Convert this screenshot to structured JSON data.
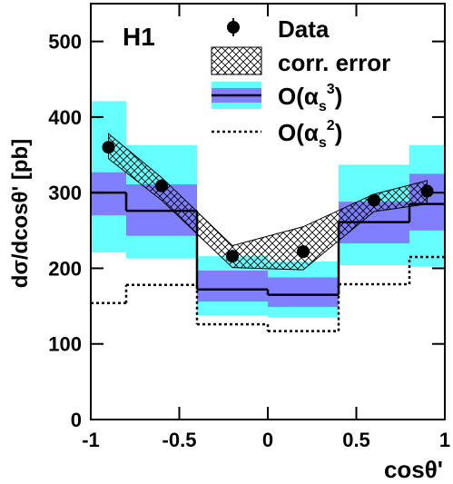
{
  "chart_data": {
    "type": "histogram",
    "title": "H1",
    "x_label": "cosθ'",
    "y_label": "dσ/dcosθ' [pb]",
    "xlim": [
      -1,
      1
    ],
    "ylim": [
      0,
      550
    ],
    "xticks": [
      -1,
      -0.5,
      0,
      0.5,
      1
    ],
    "yticks": [
      0,
      100,
      200,
      300,
      400,
      500
    ],
    "data": {
      "name": "Data",
      "color": "#000000",
      "x": [
        -0.9,
        -0.6,
        -0.2,
        0.2,
        0.6,
        0.9
      ],
      "values": [
        360,
        309,
        216,
        222,
        290,
        302
      ]
    },
    "corr_error": {
      "name": "corr. error",
      "color": "#000000",
      "x": [
        -0.9,
        -0.6,
        -0.2,
        0.2,
        0.6,
        0.9
      ],
      "upper": [
        378,
        320,
        230,
        255,
        298,
        316
      ],
      "lower": [
        345,
        290,
        201,
        198,
        275,
        285
      ]
    },
    "nlo": {
      "name_parts": [
        "O(α",
        "s",
        "3",
        ")"
      ],
      "color": "#000000",
      "band_inner_color": "#7f7fff",
      "band_outer_color": "#66ffff",
      "bins": [
        -1,
        -0.8,
        -0.4,
        0,
        0.4,
        0.8,
        1
      ],
      "values": [
        300,
        276,
        172,
        165,
        261,
        285
      ],
      "inner_low": [
        270,
        243,
        156,
        149,
        233,
        250
      ],
      "inner_high": [
        327,
        311,
        197,
        188,
        288,
        325
      ],
      "outer_low": [
        221,
        213,
        138,
        135,
        204,
        202
      ],
      "outer_high": [
        421,
        363,
        216,
        209,
        337,
        363
      ]
    },
    "lo": {
      "name_parts": [
        "O(α",
        "s",
        "2",
        ")"
      ],
      "color": "#000000",
      "bins": [
        -1,
        -0.8,
        -0.4,
        0,
        0.4,
        0.8,
        1
      ],
      "values": [
        154,
        178,
        126,
        117,
        179,
        215
      ]
    }
  }
}
